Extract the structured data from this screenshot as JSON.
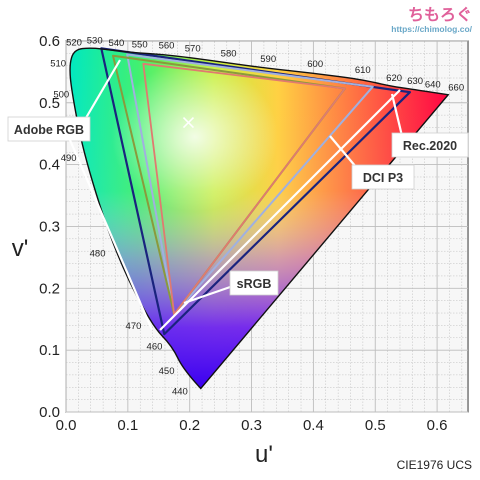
{
  "brand": {
    "name": "ちもろぐ",
    "url": "https://chimolog.co/"
  },
  "colors": {
    "plot_background": "#f7f7f7",
    "grid": "#bdbdbd",
    "spectral_locus": "#111111",
    "adobe_rgb": "#8a9a3c",
    "srgb": "#e07a70",
    "dci_p3": "#a0b0e0",
    "rec2020": "#1a237e",
    "callout": "#ffffff",
    "brand_pink": "#e0609a",
    "brand_blue": "#6aa8c8"
  },
  "chart_data": {
    "type": "scatter",
    "title": "",
    "subtitle": "CIE1976 UCS",
    "xlabel": "u'",
    "ylabel": "v'",
    "xlim": [
      0.0,
      0.65
    ],
    "ylim": [
      0.0,
      0.6
    ],
    "grid": true,
    "xticks": [
      {
        "value": 0.0,
        "label": "0.0"
      },
      {
        "value": 0.1,
        "label": "0.1"
      },
      {
        "value": 0.2,
        "label": "0.2"
      },
      {
        "value": 0.3,
        "label": "0.3"
      },
      {
        "value": 0.4,
        "label": "0.4"
      },
      {
        "value": 0.5,
        "label": "0.5"
      },
      {
        "value": 0.6,
        "label": "0.6"
      }
    ],
    "yticks": [
      {
        "value": 0.0,
        "label": "0.0"
      },
      {
        "value": 0.1,
        "label": "0.1"
      },
      {
        "value": 0.2,
        "label": "0.2"
      },
      {
        "value": 0.3,
        "label": "0.3"
      },
      {
        "value": 0.4,
        "label": "0.4"
      },
      {
        "value": 0.5,
        "label": "0.5"
      },
      {
        "value": 0.6,
        "label": "0.6"
      }
    ],
    "spectral_locus": [
      {
        "nm": "440",
        "u": 0.218,
        "v": 0.038
      },
      {
        "nm": "450",
        "u": 0.19,
        "v": 0.068
      },
      {
        "nm": "460",
        "u": 0.172,
        "v": 0.106
      },
      {
        "nm": "470",
        "u": 0.138,
        "v": 0.141
      },
      {
        "nm": "480",
        "u": 0.08,
        "v": 0.256
      },
      {
        "nm": "490",
        "u": 0.03,
        "v": 0.411
      },
      {
        "nm": "500",
        "u": 0.01,
        "v": 0.513
      },
      {
        "nm": "510",
        "u": 0.005,
        "v": 0.56
      },
      {
        "nm": "520",
        "u": 0.013,
        "v": 0.586
      },
      {
        "nm": "530",
        "u": 0.04,
        "v": 0.589
      },
      {
        "nm": "540",
        "u": 0.075,
        "v": 0.585
      },
      {
        "nm": "550",
        "u": 0.111,
        "v": 0.581
      },
      {
        "nm": "560",
        "u": 0.156,
        "v": 0.578
      },
      {
        "nm": "570",
        "u": 0.2,
        "v": 0.573
      },
      {
        "nm": "580",
        "u": 0.258,
        "v": 0.565
      },
      {
        "nm": "590",
        "u": 0.322,
        "v": 0.556
      },
      {
        "nm": "600",
        "u": 0.398,
        "v": 0.548
      },
      {
        "nm": "610",
        "u": 0.475,
        "v": 0.538
      },
      {
        "nm": "620",
        "u": 0.524,
        "v": 0.527
      },
      {
        "nm": "630",
        "u": 0.558,
        "v": 0.522
      },
      {
        "nm": "640",
        "u": 0.585,
        "v": 0.518
      },
      {
        "nm": "660",
        "u": 0.618,
        "v": 0.513
      }
    ],
    "series": [
      {
        "name": "Rec.2020",
        "points": [
          {
            "u": 0.556,
            "v": 0.517
          },
          {
            "u": 0.057,
            "v": 0.588
          },
          {
            "u": 0.159,
            "v": 0.126
          }
        ]
      },
      {
        "name": "DCI P3",
        "points": [
          {
            "u": 0.496,
            "v": 0.526
          },
          {
            "u": 0.099,
            "v": 0.578
          },
          {
            "u": 0.175,
            "v": 0.158
          }
        ]
      },
      {
        "name": "Adobe RGB",
        "points": [
          {
            "u": 0.451,
            "v": 0.523
          },
          {
            "u": 0.076,
            "v": 0.576
          },
          {
            "u": 0.175,
            "v": 0.158
          }
        ]
      },
      {
        "name": "sRGB",
        "points": [
          {
            "u": 0.451,
            "v": 0.523
          },
          {
            "u": 0.125,
            "v": 0.563
          },
          {
            "u": 0.175,
            "v": 0.158
          }
        ]
      }
    ],
    "white_point": {
      "u": 0.198,
      "v": 0.468
    },
    "legend": "callouts"
  }
}
